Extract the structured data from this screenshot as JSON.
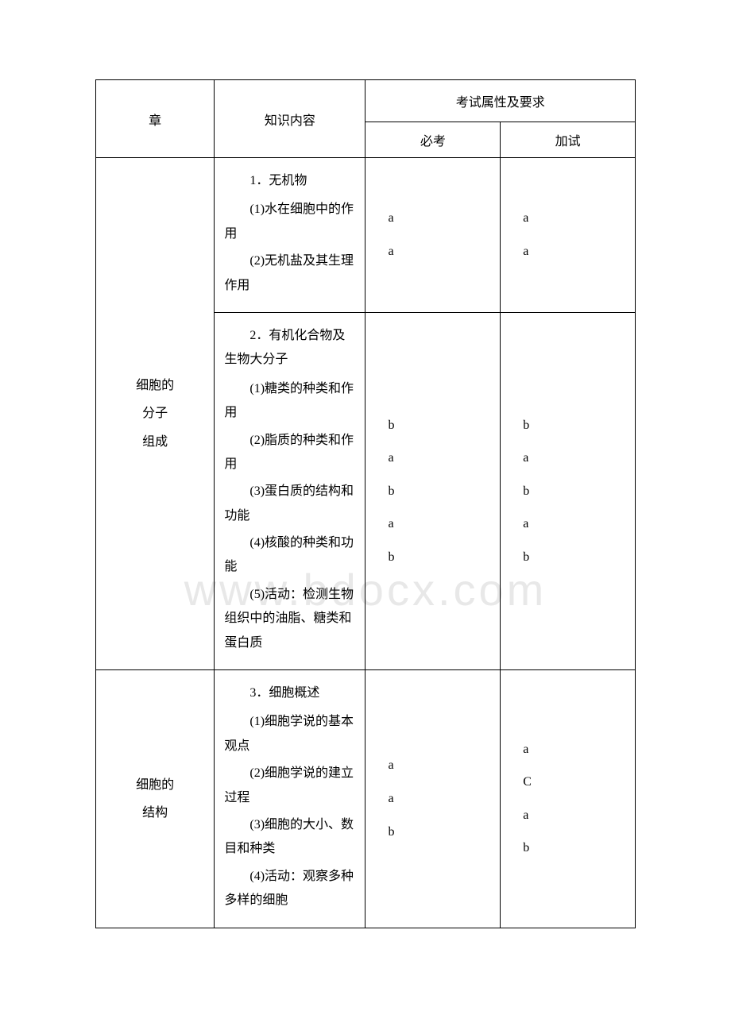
{
  "watermark": "www.bdocx.com",
  "headers": {
    "chapter": "章",
    "content": "知识内容",
    "requirement": "考试属性及要求",
    "required": "必考",
    "additional": "加试"
  },
  "rows": [
    {
      "chapter_lines": [
        "细胞的",
        "分子",
        "组成"
      ],
      "sections": [
        {
          "title": "1．无机物",
          "items": [
            "(1)水在细胞中的作用",
            "(2)无机盐及其生理作用"
          ],
          "req1": [
            "a",
            "a"
          ],
          "req2": [
            "a",
            "a"
          ]
        },
        {
          "title": "2．有机化合物及生物大分子",
          "items": [
            "(1)糖类的种类和作用",
            "(2)脂质的种类和作用",
            "(3)蛋白质的结构和功能",
            "(4)核酸的种类和功能",
            "(5)活动：检测生物组织中的油脂、糖类和蛋白质"
          ],
          "req1": [
            "b",
            "a",
            "b",
            "a",
            "b"
          ],
          "req2": [
            "b",
            "a",
            "b",
            "a",
            "b"
          ]
        }
      ]
    },
    {
      "chapter_lines": [
        "细胞的",
        "结构"
      ],
      "sections": [
        {
          "title": "3．细胞概述",
          "items": [
            "(1)细胞学说的基本观点",
            "(2)细胞学说的建立过程",
            "(3)细胞的大小、数目和种类",
            "(4)活动：观察多种多样的细胞"
          ],
          "req1": [
            "a",
            "a",
            "b"
          ],
          "req2": [
            "a",
            "C",
            "a",
            "b"
          ]
        }
      ]
    }
  ]
}
